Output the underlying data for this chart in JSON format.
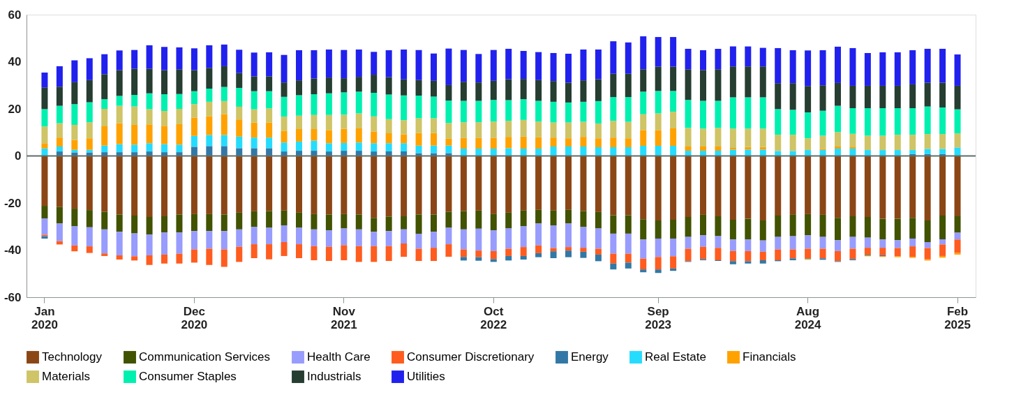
{
  "chart_data": {
    "type": "bar",
    "stacked": true,
    "legend": "bottom",
    "categories": [
      "Jan 2020",
      null,
      null,
      null,
      null,
      null,
      null,
      null,
      null,
      null,
      "Dec 2020",
      null,
      null,
      null,
      null,
      null,
      null,
      null,
      null,
      null,
      "Nov 2021",
      null,
      null,
      null,
      null,
      null,
      null,
      null,
      null,
      null,
      "Oct 2022",
      null,
      null,
      null,
      null,
      null,
      null,
      null,
      null,
      null,
      null,
      "Sep 2023",
      null,
      null,
      null,
      null,
      null,
      null,
      null,
      null,
      null,
      "Aug 2024",
      null,
      null,
      null,
      null,
      null,
      null,
      null,
      null,
      null,
      "Feb 2025"
    ],
    "series": [
      {
        "name": "Technology",
        "color": "#8b4616",
        "values": [
          -21.2,
          -21.7,
          -22.4,
          -23.0,
          -23.7,
          -24.9,
          -25.3,
          -25.9,
          -25.6,
          -24.9,
          -24.7,
          -24.7,
          -24.9,
          -24.1,
          -23.5,
          -23.4,
          -23.2,
          -24.1,
          -24.7,
          -24.9,
          -24.7,
          -24.9,
          -26.3,
          -25.8,
          -25.6,
          -24.9,
          -24.9,
          -23.7,
          -23.4,
          -23.2,
          -24.7,
          -24.1,
          -23.2,
          -22.9,
          -23.2,
          -22.9,
          -23.4,
          -23.8,
          -25.2,
          -25.2,
          -26.9,
          -27.4,
          -27.1,
          -25.9,
          -25.0,
          -25.6,
          -27.1,
          -26.7,
          -27.4,
          -25.3,
          -25.0,
          -24.7,
          -25.0,
          -26.3,
          -25.6,
          -25.9,
          -26.7,
          -26.7,
          -26.3,
          -27.4,
          -25.3,
          -25.6
        ]
      },
      {
        "name": "Communication Services",
        "color": "#415200",
        "values": [
          -5.4,
          -7.0,
          -7.5,
          -7.3,
          -7.5,
          -7.3,
          -7.6,
          -7.5,
          -6.9,
          -7.6,
          -7.2,
          -7.2,
          -7.0,
          -7.1,
          -6.7,
          -7.1,
          -6.3,
          -6.4,
          -6.5,
          -6.7,
          -6.1,
          -6.3,
          -5.9,
          -6.1,
          -5.6,
          -8.1,
          -7.3,
          -6.8,
          -7.8,
          -7.7,
          -6.9,
          -6.7,
          -6.7,
          -5.8,
          -6.3,
          -5.8,
          -6.8,
          -7.0,
          -7.8,
          -7.8,
          -8.6,
          -7.7,
          -8.0,
          -8.5,
          -8.7,
          -8.5,
          -8.4,
          -8.8,
          -8.5,
          -9.1,
          -9.1,
          -9.0,
          -9.4,
          -9.5,
          -8.8,
          -8.8,
          -8.8,
          -9.1,
          -8.8,
          -9.2,
          -10.1,
          -7.0
        ]
      },
      {
        "name": "Health Care",
        "color": "#989cfd",
        "values": [
          -6.9,
          -7.5,
          -8.1,
          -8.1,
          -10.2,
          -10.0,
          -9.7,
          -8.8,
          -9.4,
          -9.0,
          -7.8,
          -7.5,
          -7.8,
          -7.4,
          -7.3,
          -7.0,
          -7.1,
          -7.0,
          -7.1,
          -7.0,
          -7.1,
          -7.1,
          -6.1,
          -6.4,
          -6.0,
          -6.4,
          -6.8,
          -7.0,
          -8.5,
          -9.3,
          -8.8,
          -8.6,
          -8.8,
          -9.3,
          -9.6,
          -10.0,
          -8.8,
          -8.6,
          -8.5,
          -8.5,
          -8.1,
          -7.8,
          -7.5,
          -5.0,
          -4.9,
          -4.9,
          -4.9,
          -4.9,
          -4.8,
          -5.3,
          -5.6,
          -5.7,
          -5.0,
          -4.6,
          -5.0,
          -4.3,
          -3.5,
          -3.3,
          -3.3,
          -2.5,
          -2.2,
          -2.9
        ]
      },
      {
        "name": "Consumer Discretionary",
        "color": "#ff5c1f",
        "values": [
          -0.6,
          -1.4,
          -2.5,
          -2.8,
          -1.1,
          -1.8,
          -1.8,
          -4.1,
          -3.8,
          -4.2,
          -5.6,
          -6.9,
          -7.4,
          -6.4,
          -5.9,
          -6.4,
          -5.9,
          -5.9,
          -6.0,
          -6.0,
          -6.4,
          -6.7,
          -6.7,
          -6.3,
          -5.6,
          -5.2,
          -5.6,
          -5.3,
          -3.2,
          -2.8,
          -3.4,
          -3.1,
          -3.8,
          -3.3,
          -1.4,
          -1.5,
          -1.7,
          -2.5,
          -4.2,
          -3.8,
          -4.6,
          -5.3,
          -5.2,
          -5.3,
          -5.2,
          -5.3,
          -4.3,
          -4.3,
          -3.6,
          -4.6,
          -3.8,
          -4.1,
          -4.1,
          -4.3,
          -4.4,
          -2.9,
          -3.2,
          -3.5,
          -4.5,
          -4.8,
          -4.9,
          -5.7
        ]
      },
      {
        "name": "Energy",
        "color": "#3278a6",
        "values": [
          -1.0,
          1.9,
          1.5,
          1.5,
          1.6,
          1.6,
          1.6,
          1.9,
          1.6,
          1.6,
          3.9,
          4.2,
          4.2,
          3.3,
          3.3,
          3.3,
          1.9,
          2.2,
          2.2,
          1.9,
          2.2,
          2.2,
          1.9,
          1.9,
          1.9,
          1.2,
          1.2,
          1.2,
          -1.5,
          -1.5,
          -1.2,
          -1.9,
          -1.5,
          -1.7,
          -2.9,
          -2.8,
          -2.6,
          -2.8,
          -2.5,
          -2.5,
          -1.2,
          -1.5,
          -1.0,
          -0.3,
          -0.5,
          -0.3,
          -1.3,
          -1.0,
          -1.4,
          -0.4,
          -0.8,
          -0.3,
          -0.6,
          -0.3,
          -0.5,
          -0.3,
          -0.4,
          null,
          0.8,
          0.8,
          0.8,
          null
        ]
      },
      {
        "name": "Real Estate",
        "color": "#26dcfd",
        "values": [
          3.2,
          2.1,
          1.1,
          1.1,
          2.8,
          3.4,
          3.2,
          3.5,
          3.4,
          3.2,
          4.6,
          4.7,
          4.7,
          4.9,
          4.5,
          4.5,
          3.8,
          3.9,
          4.3,
          3.5,
          3.3,
          3.5,
          3.5,
          3.5,
          3.5,
          3.2,
          3.2,
          3.2,
          3.1,
          3.1,
          3.1,
          3.3,
          3.1,
          3.1,
          4.0,
          4.0,
          4.0,
          3.7,
          3.7,
          3.7,
          4.3,
          4.3,
          4.3,
          2.2,
          2.2,
          2.2,
          2.7,
          2.7,
          2.7,
          2.1,
          2.1,
          2.5,
          2.5,
          3.1,
          3.1,
          2.5,
          2.5,
          2.5,
          1.7,
          2.2,
          2.2,
          3.6
        ]
      },
      {
        "name": "Financials",
        "color": "#ffa200",
        "values": [
          2.2,
          3.8,
          4.2,
          4.9,
          8.2,
          8.9,
          8.4,
          8.0,
          7.8,
          8.7,
          7.8,
          8.0,
          8.9,
          7.3,
          6.4,
          6.4,
          5.0,
          5.3,
          4.9,
          5.6,
          6.0,
          6.0,
          5.0,
          4.2,
          3.8,
          5.3,
          5.3,
          2.9,
          4.5,
          4.5,
          4.5,
          4.8,
          5.1,
          4.8,
          3.8,
          3.5,
          4.1,
          3.8,
          4.1,
          3.8,
          6.7,
          6.7,
          7.4,
          1.8,
          1.8,
          1.8,
          0.7,
          1.1,
          1.1,
          null,
          null,
          -0.3,
          0.5,
          0.9,
          0.6,
          -0.4,
          -0.3,
          -0.4,
          -0.4,
          -0.5,
          -0.7,
          -0.7
        ]
      },
      {
        "name": "Materials",
        "color": "#cfc466",
        "values": [
          7.1,
          6.1,
          6.4,
          6.8,
          7.4,
          7.4,
          7.8,
          6.5,
          6.3,
          6.5,
          5.7,
          6.1,
          5.5,
          5.4,
          5.6,
          6.0,
          6.0,
          5.7,
          6.0,
          6.4,
          6.0,
          6.4,
          6.4,
          6.0,
          6.0,
          6.3,
          6.3,
          6.7,
          6.7,
          6.7,
          7.0,
          6.8,
          7.1,
          6.7,
          6.4,
          6.7,
          6.4,
          6.3,
          7.1,
          7.0,
          6.7,
          7.1,
          7.1,
          7.9,
          7.6,
          7.9,
          8.2,
          7.8,
          7.8,
          6.9,
          6.9,
          5.0,
          5.6,
          6.1,
          5.7,
          6.1,
          6.1,
          6.5,
          6.5,
          6.3,
          6.3,
          6.0
        ]
      },
      {
        "name": "Consumer Staples",
        "color": "#00f0b0",
        "values": [
          7.4,
          7.4,
          8.8,
          8.5,
          4.1,
          4.2,
          4.9,
          6.7,
          7.1,
          6.3,
          5.5,
          5.6,
          6.0,
          8.0,
          7.7,
          7.3,
          8.4,
          8.7,
          8.8,
          9.2,
          9.5,
          9.2,
          10.0,
          10.5,
          10.5,
          9.6,
          9.2,
          9.5,
          9.1,
          9.1,
          9.2,
          8.8,
          8.8,
          8.8,
          8.8,
          8.5,
          8.5,
          9.5,
          10.1,
          10.5,
          9.6,
          9.5,
          8.8,
          11.9,
          11.8,
          11.5,
          13.3,
          13.3,
          13.3,
          10.9,
          10.6,
          11.0,
          10.6,
          11.2,
          10.9,
          11.7,
          11.7,
          11.3,
          11.3,
          11.7,
          11.3,
          10.2
        ]
      },
      {
        "name": "Industrials",
        "color": "#263d31",
        "values": [
          9.2,
          8.1,
          9.3,
          9.4,
          10.6,
          10.9,
          11.1,
          10.4,
          10.2,
          10.5,
          8.9,
          8.8,
          8.8,
          6.3,
          6.3,
          6.3,
          6.1,
          6.3,
          6.7,
          6.7,
          6.0,
          6.3,
          7.7,
          7.4,
          6.8,
          6.6,
          6.7,
          6.6,
          8.1,
          7.8,
          8.1,
          8.9,
          8.6,
          8.8,
          8.8,
          8.4,
          9.1,
          9.3,
          9.9,
          9.9,
          9.5,
          10.3,
          10.3,
          13.0,
          13.1,
          13.4,
          13.1,
          13.1,
          13.1,
          11.0,
          11.3,
          11.2,
          10.8,
          9.7,
          9.5,
          9.5,
          9.5,
          9.5,
          10.1,
          10.1,
          10.5,
          10.0
        ]
      },
      {
        "name": "Utilities",
        "color": "#2121ee",
        "values": [
          6.3,
          8.7,
          9.3,
          9.3,
          8.5,
          8.4,
          8.0,
          10.0,
          9.9,
          9.3,
          9.3,
          9.6,
          9.2,
          9.9,
          10.1,
          10.2,
          11.7,
          12.8,
          12.0,
          11.9,
          12.0,
          11.6,
          9.7,
          11.4,
          12.7,
          12.8,
          11.6,
          15.5,
          13.5,
          12.1,
          13.1,
          12.9,
          11.9,
          11.9,
          11.9,
          12.3,
          13.1,
          12.6,
          13.8,
          13.3,
          14.0,
          12.6,
          12.6,
          8.7,
          8.4,
          8.7,
          8.5,
          8.5,
          7.9,
          14.9,
          14.0,
          15.1,
          14.9,
          15.4,
          16.0,
          13.9,
          14.2,
          14.2,
          14.5,
          14.4,
          14.4,
          13.3
        ]
      }
    ],
    "ylim": [
      -60,
      60
    ],
    "yticks": [
      -60,
      -40,
      -20,
      0,
      20,
      40,
      60
    ],
    "ref_lines": [
      {
        "axis": "y",
        "value": 0,
        "color": "#5e6e69"
      }
    ]
  }
}
